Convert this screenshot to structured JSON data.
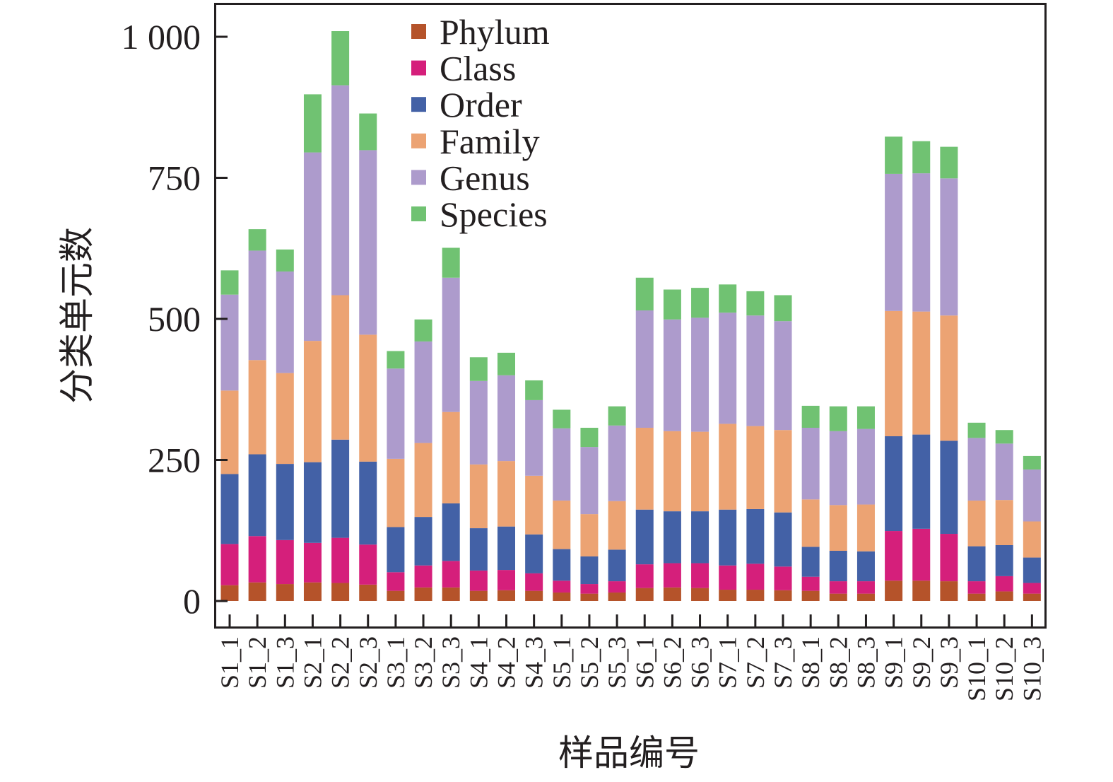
{
  "chart_data": {
    "type": "bar",
    "stacked": true,
    "title": "",
    "xlabel": "样品编号",
    "ylabel": "分类单元数",
    "ylim": [
      -50,
      1060
    ],
    "yticks": [
      0,
      250,
      500,
      750,
      1000
    ],
    "ytick_labels": [
      "0",
      "250",
      "500",
      "750",
      "1 000"
    ],
    "grid": false,
    "legend_position": "top-center",
    "categories": [
      "S1_1",
      "S1_2",
      "S1_3",
      "S2_1",
      "S2_2",
      "S2_3",
      "S3_1",
      "S3_2",
      "S3_3",
      "S4_1",
      "S4_2",
      "S4_3",
      "S5_1",
      "S5_2",
      "S5_3",
      "S6_1",
      "S6_2",
      "S6_3",
      "S7_1",
      "S7_2",
      "S7_3",
      "S8_1",
      "S8_2",
      "S8_3",
      "S9_1",
      "S9_2",
      "S9_3",
      "S10_1",
      "S10_2",
      "S10_3"
    ],
    "series": [
      {
        "name": "Phylum",
        "color": "#b5532a",
        "values": [
          28,
          33,
          30,
          33,
          32,
          29,
          18,
          24,
          24,
          18,
          19,
          18,
          15,
          13,
          15,
          23,
          24,
          23,
          20,
          20,
          19,
          18,
          13,
          13,
          36,
          36,
          35,
          13,
          17,
          13
        ]
      },
      {
        "name": "Class",
        "color": "#d51f7b",
        "values": [
          73,
          82,
          78,
          70,
          80,
          71,
          33,
          39,
          47,
          36,
          36,
          31,
          21,
          17,
          20,
          42,
          43,
          44,
          43,
          46,
          42,
          25,
          22,
          22,
          88,
          92,
          84,
          22,
          27,
          19
        ]
      },
      {
        "name": "Order",
        "color": "#4361a6",
        "values": [
          124,
          145,
          135,
          143,
          174,
          147,
          80,
          86,
          102,
          75,
          77,
          69,
          56,
          49,
          56,
          97,
          92,
          92,
          99,
          97,
          96,
          53,
          54,
          53,
          168,
          167,
          165,
          62,
          55,
          45
        ]
      },
      {
        "name": "Family",
        "color": "#eca373",
        "values": [
          148,
          167,
          161,
          215,
          256,
          225,
          121,
          131,
          162,
          113,
          116,
          104,
          86,
          75,
          86,
          145,
          142,
          141,
          152,
          147,
          146,
          84,
          81,
          83,
          222,
          218,
          222,
          81,
          80,
          64
        ]
      },
      {
        "name": "Genus",
        "color": "#ad9bcc",
        "values": [
          170,
          194,
          180,
          334,
          372,
          327,
          160,
          180,
          238,
          148,
          152,
          134,
          128,
          119,
          134,
          208,
          198,
          202,
          197,
          196,
          193,
          127,
          131,
          134,
          243,
          245,
          243,
          111,
          100,
          92
        ]
      },
      {
        "name": "Species",
        "color": "#70c272",
        "values": [
          43,
          38,
          39,
          103,
          96,
          65,
          31,
          39,
          53,
          42,
          40,
          35,
          33,
          34,
          34,
          58,
          53,
          53,
          50,
          43,
          46,
          39,
          44,
          40,
          66,
          57,
          56,
          27,
          24,
          24
        ]
      }
    ]
  }
}
